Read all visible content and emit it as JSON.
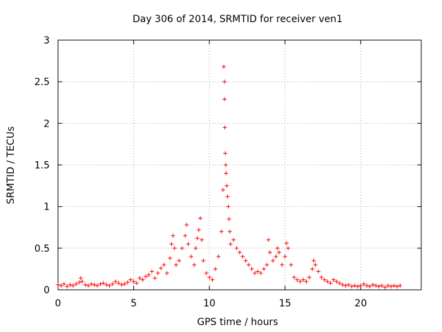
{
  "chart_data": {
    "type": "scatter",
    "title": "Day 306 of 2014, SRMTID for receiver ven1",
    "xlabel": "GPS time / hours",
    "ylabel": "SRMTID / TECUs",
    "xlim": [
      0,
      24
    ],
    "ylim": [
      0,
      3
    ],
    "xticks": [
      0,
      5,
      10,
      15,
      20
    ],
    "xtick_labels": [
      "0",
      "5",
      "10",
      "15",
      "20"
    ],
    "yticks": [
      0,
      0.5,
      1,
      1.5,
      2,
      2.5,
      3
    ],
    "ytick_labels": [
      "0",
      "0.5",
      "1",
      "1.5",
      "2",
      "2.5",
      "3"
    ],
    "grid": true,
    "marker": "+",
    "color": "#ff0000",
    "series": [
      {
        "name": "ven1",
        "points": [
          [
            0.0,
            0.06
          ],
          [
            0.2,
            0.05
          ],
          [
            0.4,
            0.07
          ],
          [
            0.6,
            0.04
          ],
          [
            0.8,
            0.06
          ],
          [
            1.0,
            0.05
          ],
          [
            1.2,
            0.07
          ],
          [
            1.4,
            0.09
          ],
          [
            1.5,
            0.14
          ],
          [
            1.6,
            0.1
          ],
          [
            1.8,
            0.06
          ],
          [
            2.0,
            0.05
          ],
          [
            2.2,
            0.07
          ],
          [
            2.4,
            0.06
          ],
          [
            2.6,
            0.05
          ],
          [
            2.8,
            0.07
          ],
          [
            3.0,
            0.08
          ],
          [
            3.2,
            0.06
          ],
          [
            3.4,
            0.05
          ],
          [
            3.6,
            0.07
          ],
          [
            3.8,
            0.1
          ],
          [
            4.0,
            0.08
          ],
          [
            4.2,
            0.06
          ],
          [
            4.4,
            0.07
          ],
          [
            4.6,
            0.09
          ],
          [
            4.8,
            0.12
          ],
          [
            5.0,
            0.1
          ],
          [
            5.2,
            0.08
          ],
          [
            5.4,
            0.14
          ],
          [
            5.6,
            0.12
          ],
          [
            5.8,
            0.16
          ],
          [
            6.0,
            0.18
          ],
          [
            6.2,
            0.22
          ],
          [
            6.4,
            0.14
          ],
          [
            6.6,
            0.2
          ],
          [
            6.8,
            0.26
          ],
          [
            7.0,
            0.3
          ],
          [
            7.2,
            0.2
          ],
          [
            7.4,
            0.38
          ],
          [
            7.5,
            0.55
          ],
          [
            7.6,
            0.65
          ],
          [
            7.7,
            0.5
          ],
          [
            7.8,
            0.3
          ],
          [
            8.0,
            0.35
          ],
          [
            8.2,
            0.5
          ],
          [
            8.4,
            0.65
          ],
          [
            8.5,
            0.78
          ],
          [
            8.6,
            0.55
          ],
          [
            8.8,
            0.4
          ],
          [
            9.0,
            0.3
          ],
          [
            9.1,
            0.5
          ],
          [
            9.2,
            0.62
          ],
          [
            9.3,
            0.72
          ],
          [
            9.4,
            0.86
          ],
          [
            9.5,
            0.6
          ],
          [
            9.6,
            0.35
          ],
          [
            9.8,
            0.2
          ],
          [
            10.0,
            0.15
          ],
          [
            10.2,
            0.12
          ],
          [
            10.4,
            0.25
          ],
          [
            10.6,
            0.4
          ],
          [
            10.8,
            0.7
          ],
          [
            10.9,
            1.2
          ],
          [
            10.95,
            2.68
          ],
          [
            11.0,
            2.5
          ],
          [
            11.0,
            2.29
          ],
          [
            11.02,
            1.95
          ],
          [
            11.05,
            1.64
          ],
          [
            11.08,
            1.5
          ],
          [
            11.1,
            1.4
          ],
          [
            11.15,
            1.25
          ],
          [
            11.2,
            1.12
          ],
          [
            11.25,
            1.0
          ],
          [
            11.3,
            0.85
          ],
          [
            11.35,
            0.7
          ],
          [
            11.4,
            0.55
          ],
          [
            11.6,
            0.6
          ],
          [
            11.8,
            0.5
          ],
          [
            12.0,
            0.45
          ],
          [
            12.2,
            0.4
          ],
          [
            12.4,
            0.35
          ],
          [
            12.6,
            0.3
          ],
          [
            12.8,
            0.25
          ],
          [
            13.0,
            0.2
          ],
          [
            13.2,
            0.22
          ],
          [
            13.4,
            0.2
          ],
          [
            13.6,
            0.25
          ],
          [
            13.8,
            0.3
          ],
          [
            13.9,
            0.6
          ],
          [
            14.0,
            0.45
          ],
          [
            14.2,
            0.35
          ],
          [
            14.4,
            0.4
          ],
          [
            14.5,
            0.5
          ],
          [
            14.6,
            0.45
          ],
          [
            14.8,
            0.3
          ],
          [
            15.0,
            0.4
          ],
          [
            15.1,
            0.56
          ],
          [
            15.2,
            0.5
          ],
          [
            15.4,
            0.3
          ],
          [
            15.6,
            0.15
          ],
          [
            15.8,
            0.12
          ],
          [
            16.0,
            0.1
          ],
          [
            16.2,
            0.12
          ],
          [
            16.4,
            0.1
          ],
          [
            16.6,
            0.15
          ],
          [
            16.8,
            0.25
          ],
          [
            16.9,
            0.35
          ],
          [
            17.0,
            0.3
          ],
          [
            17.2,
            0.22
          ],
          [
            17.4,
            0.15
          ],
          [
            17.6,
            0.12
          ],
          [
            17.8,
            0.1
          ],
          [
            18.0,
            0.08
          ],
          [
            18.2,
            0.12
          ],
          [
            18.4,
            0.1
          ],
          [
            18.6,
            0.08
          ],
          [
            18.8,
            0.06
          ],
          [
            19.0,
            0.05
          ],
          [
            19.2,
            0.06
          ],
          [
            19.4,
            0.04
          ],
          [
            19.6,
            0.05
          ],
          [
            19.8,
            0.04
          ],
          [
            20.0,
            0.05
          ],
          [
            20.2,
            0.07
          ],
          [
            20.4,
            0.05
          ],
          [
            20.6,
            0.04
          ],
          [
            20.8,
            0.06
          ],
          [
            21.0,
            0.05
          ],
          [
            21.2,
            0.04
          ],
          [
            21.4,
            0.05
          ],
          [
            21.6,
            0.03
          ],
          [
            21.8,
            0.05
          ],
          [
            22.0,
            0.04
          ],
          [
            22.2,
            0.05
          ],
          [
            22.4,
            0.04
          ],
          [
            22.6,
            0.05
          ]
        ]
      }
    ]
  }
}
